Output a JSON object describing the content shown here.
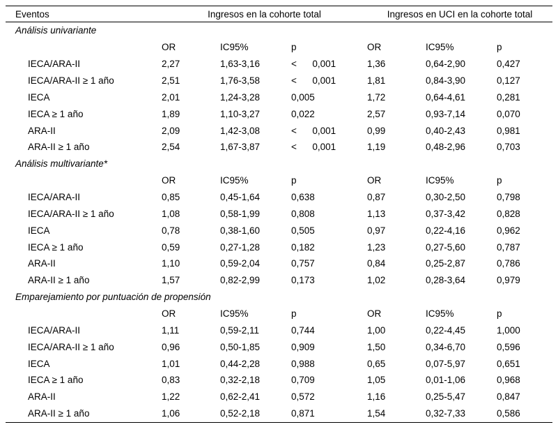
{
  "table": {
    "header": {
      "events_label": "Eventos",
      "group1": "Ingresos en la cohorte total",
      "group2": "Ingresos en UCI en la cohorte total"
    },
    "col_headers": [
      "OR",
      "IC95%",
      "p",
      "OR",
      "IC95%",
      "p"
    ],
    "sections": [
      {
        "title": "Análisis univariante",
        "rows": [
          {
            "label": "IECA/ARA-II",
            "values": [
              "2,27",
              "1,63-3,16",
              "<      0,001",
              "1,36",
              "0,64-2,90",
              "0,427"
            ]
          },
          {
            "label": "IECA/ARA-II ≥ 1 año",
            "values": [
              "2,51",
              "1,76-3,58",
              "<      0,001",
              "1,81",
              "0,84-3,90",
              "0,127"
            ]
          },
          {
            "label": "IECA",
            "values": [
              "2,01",
              "1,24-3,28",
              "0,005",
              "1,72",
              "0,64-4,61",
              "0,281"
            ]
          },
          {
            "label": "IECA ≥ 1 año",
            "values": [
              "1,89",
              "1,10-3,27",
              "0,022",
              "2,57",
              "0,93-7,14",
              "0,070"
            ]
          },
          {
            "label": "ARA-II",
            "values": [
              "2,09",
              "1,42-3,08",
              "<      0,001",
              "0,99",
              "0,40-2,43",
              "0,981"
            ]
          },
          {
            "label": "ARA-II ≥ 1 año",
            "values": [
              "2,54",
              "1,67-3,87",
              "<      0,001",
              "1,19",
              "0,48-2,96",
              "0,703"
            ]
          }
        ]
      },
      {
        "title": "Análisis multivariante*",
        "rows": [
          {
            "label": "IECA/ARA-II",
            "values": [
              "0,85",
              "0,45-1,64",
              "0,638",
              "0,87",
              "0,30-2,50",
              "0,798"
            ]
          },
          {
            "label": "IECA/ARA-II ≥ 1 año",
            "values": [
              "1,08",
              "0,58-1,99",
              "0,808",
              "1,13",
              "0,37-3,42",
              "0,828"
            ]
          },
          {
            "label": "IECA",
            "values": [
              "0,78",
              "0,38-1,60",
              "0,505",
              "0,97",
              "0,22-4,16",
              "0,962"
            ]
          },
          {
            "label": "IECA ≥ 1 año",
            "values": [
              "0,59",
              "0,27-1,28",
              "0,182",
              "1,23",
              "0,27-5,60",
              "0,787"
            ]
          },
          {
            "label": "ARA-II",
            "values": [
              "1,10",
              "0,59-2,04",
              "0,757",
              "0,84",
              "0,25-2,87",
              "0,786"
            ]
          },
          {
            "label": "ARA-II ≥ 1 año",
            "values": [
              "1,57",
              "0,82-2,99",
              "0,173",
              "1,02",
              "0,28-3,64",
              "0,979"
            ]
          }
        ]
      },
      {
        "title": "Emparejamiento por puntuación de propensión",
        "rows": [
          {
            "label": "IECA/ARA-II",
            "values": [
              "1,11",
              "0,59-2,11",
              "0,744",
              "1,00",
              "0,22-4,45",
              "1,000"
            ]
          },
          {
            "label": "IECA/ARA-II ≥ 1 año",
            "values": [
              "0,96",
              "0,50-1,85",
              "0,909",
              "1,50",
              "0,34-6,70",
              "0,596"
            ]
          },
          {
            "label": "IECA",
            "values": [
              "1,01",
              "0,44-2,28",
              "0,988",
              "0,65",
              "0,07-5,97",
              "0,651"
            ]
          },
          {
            "label": "IECA ≥ 1 año",
            "values": [
              "0,83",
              "0,32-2,18",
              "0,709",
              "1,05",
              "0,01-1,06",
              "0,968"
            ]
          },
          {
            "label": "ARA-II",
            "values": [
              "1,22",
              "0,62-2,41",
              "0,572",
              "1,16",
              "0,25-5,47",
              "0,847"
            ]
          },
          {
            "label": "ARA-II ≥ 1 año",
            "values": [
              "1,06",
              "0,52-2,18",
              "0,871",
              "1,54",
              "0,32-7,33",
              "0,586"
            ]
          }
        ]
      }
    ]
  }
}
